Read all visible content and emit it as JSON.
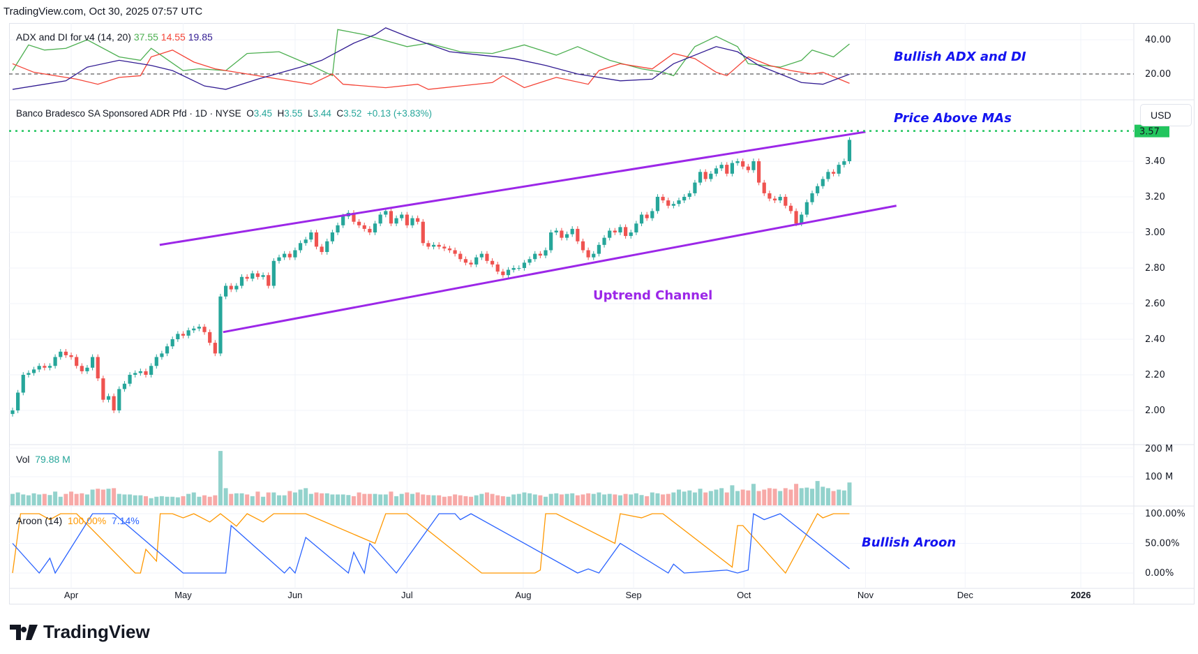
{
  "header": {
    "text": "TradingView.com, Oct 30, 2025 07:57 UTC"
  },
  "logo": {
    "text": "TradingView"
  },
  "colors": {
    "up": "#26a69a",
    "down": "#ef5350",
    "vol_up": "#92d2cc",
    "vol_down": "#f7a9a7",
    "plus_di": "#4caf50",
    "minus_di": "#f44336",
    "adx": "#311b92",
    "aroon_up": "#ff9800",
    "aroon_down": "#2962ff",
    "channel": "#9c27e8",
    "price_line": "#22c55e",
    "annotation": "#1414f0"
  },
  "legends": {
    "adx": {
      "name": "ADX and DI for v4 (14, 20)",
      "plus_di": "37.55",
      "minus_di": "14.55",
      "adx": "19.85"
    },
    "price": {
      "name": "Banco Bradesco SA Sponsored ADR Pfd · 1D · NYSE",
      "o_label": "O",
      "o": "3.45",
      "h_label": "H",
      "h": "3.55",
      "l_label": "L",
      "l": "3.44",
      "c_label": "C",
      "c": "3.52",
      "change": "+0.13 (+3.83%)"
    },
    "vol": {
      "name": "Vol",
      "value": "79.88 M"
    },
    "aroon": {
      "name": "Aroon (14)",
      "up": "100.00%",
      "down": "7.14%"
    }
  },
  "annotations": {
    "adx": "Bullish ADX and DI",
    "ma": "Price Above MAs",
    "channel": "Uptrend Channel",
    "aroon": "Bullish Aroon"
  },
  "currency": "USD",
  "last_price_label": "3.57",
  "chart_data": {
    "type": "candlestick",
    "title": "Banco Bradesco SA Sponsored ADR Pfd · 1D · NYSE",
    "x_ticks": [
      {
        "label": "Apr",
        "idx": 11
      },
      {
        "label": "May",
        "idx": 32
      },
      {
        "label": "Jun",
        "idx": 53
      },
      {
        "label": "Jul",
        "idx": 74
      },
      {
        "label": "Aug",
        "idx": 95.8
      },
      {
        "label": "Sep",
        "idx": 116.5
      },
      {
        "label": "Oct",
        "idx": 137.2
      },
      {
        "label": "Nov",
        "idx": 160
      },
      {
        "label": "Dec",
        "idx": 178.7
      },
      {
        "label": "2026",
        "idx": 200.4
      }
    ],
    "price_ticks": [
      "2.00",
      "2.20",
      "2.40",
      "2.60",
      "2.80",
      "3.00",
      "3.20",
      "3.40"
    ],
    "price_ylim": [
      1.85,
      3.75
    ],
    "close": [
      2.0,
      2.1,
      2.2,
      2.21,
      2.23,
      2.25,
      2.24,
      2.25,
      2.3,
      2.33,
      2.31,
      2.3,
      2.25,
      2.22,
      2.24,
      2.3,
      2.18,
      2.06,
      2.08,
      2.0,
      2.12,
      2.15,
      2.2,
      2.21,
      2.22,
      2.2,
      2.25,
      2.3,
      2.32,
      2.36,
      2.4,
      2.43,
      2.42,
      2.45,
      2.46,
      2.47,
      2.44,
      2.38,
      2.32,
      2.64,
      2.7,
      2.68,
      2.7,
      2.75,
      2.74,
      2.77,
      2.75,
      2.76,
      2.7,
      2.84,
      2.86,
      2.88,
      2.86,
      2.9,
      2.94,
      2.96,
      3.0,
      2.92,
      2.89,
      2.95,
      3.0,
      3.04,
      3.09,
      3.11,
      3.06,
      3.04,
      3.02,
      3.0,
      3.05,
      3.1,
      3.12,
      3.05,
      3.08,
      3.1,
      3.04,
      3.08,
      3.06,
      2.94,
      2.92,
      2.93,
      2.92,
      2.91,
      2.9,
      2.88,
      2.85,
      2.83,
      2.82,
      2.86,
      2.88,
      2.84,
      2.82,
      2.78,
      2.76,
      2.79,
      2.8,
      2.8,
      2.83,
      2.85,
      2.88,
      2.87,
      2.9,
      3.0,
      3.01,
      2.97,
      2.99,
      3.02,
      2.95,
      2.9,
      2.86,
      2.88,
      2.93,
      2.97,
      3.01,
      3.0,
      3.03,
      2.98,
      3.0,
      3.05,
      3.1,
      3.08,
      3.12,
      3.2,
      3.18,
      3.15,
      3.16,
      3.18,
      3.2,
      3.22,
      3.28,
      3.34,
      3.3,
      3.33,
      3.36,
      3.38,
      3.33,
      3.39,
      3.4,
      3.37,
      3.35,
      3.4,
      3.28,
      3.22,
      3.19,
      3.18,
      3.2,
      3.15,
      3.12,
      3.05,
      3.1,
      3.17,
      3.22,
      3.26,
      3.3,
      3.34,
      3.33,
      3.38,
      3.4,
      3.52
    ],
    "volume_millions": [
      40,
      45,
      38,
      35,
      42,
      38,
      40,
      36,
      48,
      30,
      40,
      48,
      40,
      42,
      38,
      55,
      58,
      55,
      58,
      60,
      40,
      38,
      38,
      35,
      35,
      32,
      25,
      30,
      32,
      30,
      30,
      28,
      32,
      40,
      45,
      30,
      35,
      30,
      35,
      190,
      60,
      40,
      42,
      42,
      38,
      32,
      48,
      30,
      45,
      45,
      35,
      35,
      50,
      45,
      55,
      60,
      40,
      45,
      42,
      42,
      38,
      38,
      38,
      36,
      32,
      45,
      40,
      40,
      40,
      38,
      38,
      48,
      32,
      40,
      45,
      40,
      45,
      38,
      36,
      35,
      35,
      30,
      32,
      38,
      35,
      32,
      30,
      35,
      40,
      45,
      40,
      35,
      32,
      30,
      38,
      40,
      45,
      42,
      38,
      35,
      30,
      40,
      42,
      38,
      40,
      42,
      35,
      38,
      42,
      40,
      45,
      38,
      40,
      38,
      35,
      40,
      38,
      42,
      36,
      32,
      45,
      42,
      38,
      40,
      45,
      55,
      48,
      52,
      45,
      58,
      45,
      50,
      55,
      60,
      45,
      70,
      50,
      55,
      52,
      75,
      50,
      55,
      60,
      58,
      50,
      60,
      55,
      75,
      60,
      62,
      58,
      85,
      65,
      60,
      50,
      55,
      52,
      79.88
    ],
    "volume_ticks": [
      "100 M",
      "200 M"
    ],
    "price_line": 3.57,
    "channel": {
      "upper": [
        [
          27.6,
          2.93
        ],
        [
          160,
          3.565
        ]
      ],
      "lower": [
        [
          39.5,
          2.44
        ],
        [
          165.8,
          3.15
        ]
      ]
    },
    "adx_ticks": [
      "20.00",
      "40.00"
    ],
    "adx_ylim": [
      0,
      50
    ],
    "adx_threshold": 20,
    "plus_di": [
      [
        0,
        22
      ],
      [
        3,
        37
      ],
      [
        6,
        34
      ],
      [
        10,
        35
      ],
      [
        14,
        40
      ],
      [
        20,
        30
      ],
      [
        24,
        28
      ],
      [
        26,
        35
      ],
      [
        32,
        22
      ],
      [
        35,
        23
      ],
      [
        40,
        22
      ],
      [
        44,
        32
      ],
      [
        50,
        33
      ],
      [
        56,
        25
      ],
      [
        60,
        19
      ],
      [
        61,
        46
      ],
      [
        66,
        43
      ],
      [
        74,
        36
      ],
      [
        78,
        38
      ],
      [
        84,
        33
      ],
      [
        90,
        32
      ],
      [
        96,
        37
      ],
      [
        102,
        31
      ],
      [
        106,
        36
      ],
      [
        112,
        28
      ],
      [
        118,
        23
      ],
      [
        122,
        21
      ],
      [
        124,
        19
      ],
      [
        128,
        36
      ],
      [
        132,
        42
      ],
      [
        136,
        36
      ],
      [
        138,
        26
      ],
      [
        144,
        24
      ],
      [
        148,
        28
      ],
      [
        150,
        34
      ],
      [
        154,
        30
      ],
      [
        157,
        37.55
      ]
    ],
    "minus_di": [
      [
        0,
        26
      ],
      [
        4,
        21
      ],
      [
        12,
        17
      ],
      [
        16,
        14
      ],
      [
        20,
        18
      ],
      [
        24,
        19
      ],
      [
        26,
        30
      ],
      [
        30,
        34
      ],
      [
        34,
        27
      ],
      [
        38,
        23
      ],
      [
        44,
        20
      ],
      [
        50,
        17
      ],
      [
        56,
        14
      ],
      [
        60,
        20
      ],
      [
        62,
        14
      ],
      [
        70,
        12
      ],
      [
        76,
        14
      ],
      [
        78,
        11
      ],
      [
        84,
        13
      ],
      [
        90,
        15
      ],
      [
        92,
        19
      ],
      [
        96,
        12
      ],
      [
        102,
        18
      ],
      [
        108,
        14
      ],
      [
        110,
        22
      ],
      [
        114,
        26
      ],
      [
        120,
        23
      ],
      [
        124,
        32
      ],
      [
        128,
        29
      ],
      [
        132,
        21
      ],
      [
        134,
        19
      ],
      [
        138,
        30
      ],
      [
        142,
        25
      ],
      [
        146,
        22
      ],
      [
        150,
        20
      ],
      [
        152,
        21
      ],
      [
        157,
        14.55
      ]
    ],
    "adx": [
      [
        0,
        11
      ],
      [
        6,
        14
      ],
      [
        10,
        16
      ],
      [
        14,
        24
      ],
      [
        20,
        28
      ],
      [
        26,
        25
      ],
      [
        30,
        22
      ],
      [
        36,
        13
      ],
      [
        40,
        11
      ],
      [
        46,
        17
      ],
      [
        54,
        24
      ],
      [
        58,
        28
      ],
      [
        64,
        38
      ],
      [
        68,
        43
      ],
      [
        70,
        47
      ],
      [
        74,
        42
      ],
      [
        82,
        33
      ],
      [
        88,
        31
      ],
      [
        94,
        29
      ],
      [
        100,
        25
      ],
      [
        106,
        20
      ],
      [
        114,
        16
      ],
      [
        120,
        17
      ],
      [
        124,
        26
      ],
      [
        132,
        36
      ],
      [
        136,
        33
      ],
      [
        140,
        25
      ],
      [
        148,
        15
      ],
      [
        152,
        14
      ],
      [
        157,
        19.85
      ]
    ],
    "aroon_ticks": [
      "0.00%",
      "50.00%",
      "100.00%"
    ],
    "aroon_up": [
      [
        0,
        0
      ],
      [
        1.5,
        100
      ],
      [
        5,
        100
      ],
      [
        7,
        90
      ],
      [
        9,
        100
      ],
      [
        12,
        100
      ],
      [
        23,
        0
      ],
      [
        24,
        0
      ],
      [
        25,
        40
      ],
      [
        27,
        20
      ],
      [
        27.7,
        100
      ],
      [
        30,
        100
      ],
      [
        32,
        93
      ],
      [
        34,
        100
      ],
      [
        37,
        86
      ],
      [
        39,
        100
      ],
      [
        42,
        79
      ],
      [
        44,
        100
      ],
      [
        47,
        86
      ],
      [
        49,
        100
      ],
      [
        53,
        100
      ],
      [
        55,
        100
      ],
      [
        68,
        50
      ],
      [
        70,
        100
      ],
      [
        74,
        100
      ],
      [
        88,
        0
      ],
      [
        98,
        0
      ],
      [
        99,
        5
      ],
      [
        100,
        100
      ],
      [
        102,
        100
      ],
      [
        113,
        50
      ],
      [
        114,
        100
      ],
      [
        118,
        93
      ],
      [
        120,
        100
      ],
      [
        122,
        100
      ],
      [
        135,
        10
      ],
      [
        136,
        80
      ],
      [
        137,
        80
      ],
      [
        145,
        0
      ],
      [
        151,
        100
      ],
      [
        152,
        93
      ],
      [
        154,
        100
      ],
      [
        157,
        100
      ]
    ],
    "aroon_down": [
      [
        0,
        50
      ],
      [
        5,
        0
      ],
      [
        7,
        25
      ],
      [
        8,
        0
      ],
      [
        15,
        100
      ],
      [
        19,
        100
      ],
      [
        32,
        0
      ],
      [
        40,
        0
      ],
      [
        41,
        80
      ],
      [
        51,
        0
      ],
      [
        52,
        10
      ],
      [
        53,
        0
      ],
      [
        55,
        60
      ],
      [
        63,
        0
      ],
      [
        64,
        35
      ],
      [
        66,
        0
      ],
      [
        67,
        50
      ],
      [
        72,
        0
      ],
      [
        80,
        100
      ],
      [
        83,
        100
      ],
      [
        84,
        90
      ],
      [
        86,
        100
      ],
      [
        106,
        0
      ],
      [
        108,
        7
      ],
      [
        110,
        0
      ],
      [
        114,
        50
      ],
      [
        123,
        0
      ],
      [
        124,
        15
      ],
      [
        126,
        0
      ],
      [
        134,
        5
      ],
      [
        136,
        0
      ],
      [
        138,
        5
      ],
      [
        139,
        100
      ],
      [
        141,
        90
      ],
      [
        144,
        100
      ],
      [
        157,
        7.14
      ]
    ]
  }
}
